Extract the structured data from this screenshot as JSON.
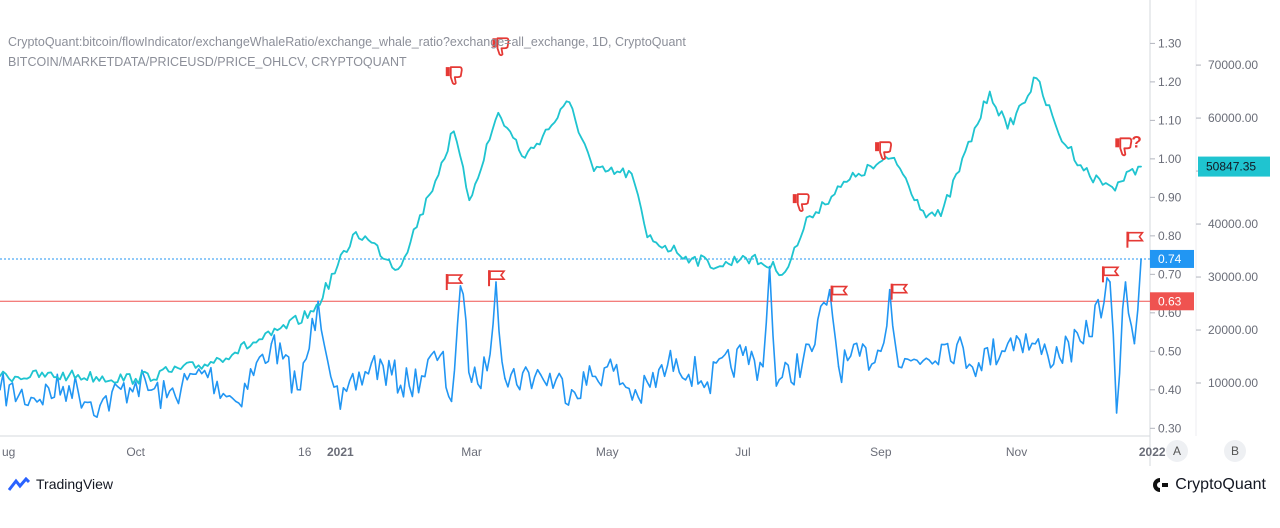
{
  "header": {
    "line1": "CryptoQuant:bitcoin/flowIndicator/exchangeWhaleRatio/exchange_whale_ratio?exchange=all_exchange, 1D, CryptoQuant",
    "line2": "BITCOIN/MARKETDATA/PRICEUSD/PRICE_OHLCV, CRYPTOQUANT"
  },
  "footer": {
    "left_brand": "TradingView",
    "right_brand": "CryptoQuant"
  },
  "scale_buttons": {
    "a": "A",
    "b": "B"
  },
  "colors": {
    "ratio": "#2196f3",
    "price": "#1fc4d0",
    "line_074": "#2196f3",
    "line_063": "#ef5350",
    "flag": "#e53935"
  },
  "chart_data": {
    "type": "line",
    "x_range": [
      "2020-08-01",
      "2021-12-31"
    ],
    "x_ticks": [
      "ug",
      "Oct",
      "16",
      "2021",
      "Mar",
      "May",
      "Jul",
      "Sep",
      "Nov",
      "2022"
    ],
    "ratio_axis": {
      "ticks": [
        "0.30",
        "0.40",
        "0.50",
        "0.60",
        "0.70",
        "0.80",
        "0.90",
        "1.00",
        "1.10",
        "1.20",
        "1.30"
      ],
      "range": [
        0.28,
        1.34
      ]
    },
    "price_axis": {
      "ticks": [
        "10000.00",
        "20000.00",
        "30000.00",
        "40000.00",
        "50000.00",
        "60000.00",
        "70000.00"
      ],
      "range": [
        0,
        77000
      ]
    },
    "horizontal_lines": [
      {
        "value": 0.74,
        "label": "0.74"
      },
      {
        "value": 0.63,
        "label": "0.63"
      }
    ],
    "last_price_label": "50847.35",
    "question_mark": "?",
    "series": [
      {
        "name": "",
        "axis": "price",
        "x": [
          "2020-08-01",
          "2020-09-01",
          "2020-10-01",
          "2020-11-01",
          "2020-12-01",
          "2020-12-20",
          "2021-01-08",
          "2021-01-15",
          "2021-01-27",
          "2021-02-10",
          "2021-02-21",
          "2021-02-28",
          "2021-03-13",
          "2021-03-25",
          "2021-04-14",
          "2021-04-25",
          "2021-05-12",
          "2021-05-19",
          "2021-06-08",
          "2021-06-22",
          "2021-07-01",
          "2021-07-20",
          "2021-07-31",
          "2021-08-14",
          "2021-08-22",
          "2021-09-07",
          "2021-09-20",
          "2021-09-28",
          "2021-10-20",
          "2021-10-28",
          "2021-11-10",
          "2021-11-20",
          "2021-12-04",
          "2021-12-14",
          "2021-12-27"
        ],
        "values": [
          11300,
          11400,
          10800,
          13500,
          19000,
          23500,
          38500,
          36500,
          31500,
          45500,
          57500,
          44500,
          61000,
          52500,
          63000,
          50000,
          49500,
          37500,
          33500,
          32000,
          34000,
          31000,
          41500,
          47000,
          49500,
          52500,
          42500,
          41500,
          65000,
          58000,
          67500,
          57000,
          49000,
          47000,
          50847
        ]
      },
      {
        "name": "",
        "axis": "ratio",
        "x": [
          "2020-08-01",
          "2020-08-15",
          "2020-09-01",
          "2020-09-15",
          "2020-10-01",
          "2020-10-15",
          "2020-11-01",
          "2020-11-15",
          "2020-12-01",
          "2020-12-14",
          "2020-12-22",
          "2021-01-01",
          "2021-01-15",
          "2021-02-01",
          "2021-02-15",
          "2021-02-20",
          "2021-02-24",
          "2021-03-01",
          "2021-03-08",
          "2021-03-12",
          "2021-03-16",
          "2021-04-01",
          "2021-04-15",
          "2021-05-01",
          "2021-05-15",
          "2021-06-01",
          "2021-06-15",
          "2021-07-01",
          "2021-07-10",
          "2021-07-13",
          "2021-07-16",
          "2021-08-01",
          "2021-08-09",
          "2021-08-13",
          "2021-09-01",
          "2021-09-05",
          "2021-09-09",
          "2021-10-01",
          "2021-10-15",
          "2021-11-01",
          "2021-11-15",
          "2021-12-01",
          "2021-12-13",
          "2021-12-16",
          "2021-12-20",
          "2021-12-24",
          "2021-12-27"
        ],
        "values": [
          0.4,
          0.38,
          0.41,
          0.36,
          0.42,
          0.38,
          0.45,
          0.37,
          0.52,
          0.4,
          0.63,
          0.35,
          0.47,
          0.41,
          0.49,
          0.37,
          0.67,
          0.42,
          0.45,
          0.68,
          0.43,
          0.44,
          0.4,
          0.46,
          0.38,
          0.48,
          0.42,
          0.49,
          0.46,
          0.72,
          0.41,
          0.5,
          0.66,
          0.46,
          0.5,
          0.66,
          0.46,
          0.52,
          0.47,
          0.54,
          0.49,
          0.52,
          0.68,
          0.34,
          0.68,
          0.52,
          0.74
        ]
      }
    ],
    "flags": [
      {
        "date": "2021-02-21",
        "value": 0.68,
        "kind": "flag"
      },
      {
        "date": "2021-03-12",
        "value": 0.69,
        "kind": "flag"
      },
      {
        "date": "2021-08-13",
        "value": 0.65,
        "kind": "flag"
      },
      {
        "date": "2021-09-09",
        "value": 0.655,
        "kind": "flag"
      },
      {
        "date": "2021-12-13",
        "value": 0.7,
        "kind": "flag"
      },
      {
        "date": "2021-12-24",
        "value": 0.79,
        "kind": "flag"
      },
      {
        "date": "2021-02-21",
        "value": 1.215,
        "kind": "thumbs-down"
      },
      {
        "date": "2021-03-14",
        "value": 1.29,
        "kind": "thumbs-down"
      },
      {
        "date": "2021-07-27",
        "value": 0.885,
        "kind": "thumbs-down"
      },
      {
        "date": "2021-09-02",
        "value": 1.02,
        "kind": "thumbs-down"
      },
      {
        "date": "2021-12-19",
        "value": 1.03,
        "kind": "thumbs-down"
      }
    ]
  }
}
